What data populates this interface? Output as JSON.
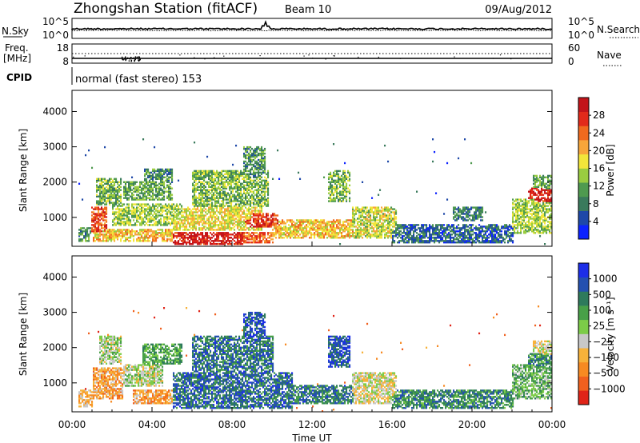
{
  "header": {
    "station": "Zhongshan Station (fitACF)",
    "beam": "Beam 10",
    "date": "09/Aug/2012"
  },
  "noise_panel": {
    "left_label": "N.Sky",
    "left_ticks": [
      "10^5",
      "10^0"
    ],
    "right_label": "N.Search",
    "right_ticks": [
      "10^5",
      "10^0"
    ]
  },
  "freq_panel": {
    "left_label_line1": "Freq.",
    "left_label_line2": "[MHz]",
    "left_ticks": [
      "18",
      "8"
    ],
    "right_label": "Nave",
    "right_ticks": [
      "60",
      "0"
    ]
  },
  "cpid": {
    "label": "CPID",
    "text": "normal (fast stereo) 153"
  },
  "chart_data": [
    {
      "type": "heatmap",
      "panel": "power",
      "ylabel": "Slant Range [km]",
      "ylim": [
        180,
        4600
      ],
      "yticks": [
        "1000",
        "2000",
        "3000",
        "4000"
      ],
      "xlim": [
        "00:00",
        "24:00"
      ],
      "colorbar": {
        "label": "Power [dB]",
        "ticks": [
          "4",
          "8",
          "12",
          "16",
          "20",
          "24",
          "28"
        ],
        "colors": [
          "#0c22ff",
          "#1e48a8",
          "#3a7a5c",
          "#4f9a4f",
          "#9acc40",
          "#f2e63a",
          "#f7a63a",
          "#f06a1e",
          "#e22a1a",
          "#c2141a"
        ]
      },
      "regions": [
        {
          "t0": 0.3,
          "t1": 0.9,
          "r0": 300,
          "r1": 700,
          "v": 0.3
        },
        {
          "t0": 0.9,
          "t1": 1.7,
          "r0": 550,
          "r1": 1300,
          "v": 0.8
        },
        {
          "t0": 1.2,
          "t1": 2.4,
          "r0": 1350,
          "r1": 2100,
          "v": 0.4
        },
        {
          "t0": 1.0,
          "t1": 5.0,
          "r0": 300,
          "r1": 650,
          "v": 0.6
        },
        {
          "t0": 2.0,
          "t1": 5.5,
          "r0": 750,
          "r1": 1350,
          "v": 0.45
        },
        {
          "t0": 2.5,
          "t1": 5.0,
          "r0": 1450,
          "r1": 2000,
          "v": 0.35
        },
        {
          "t0": 3.6,
          "t1": 5.0,
          "r0": 1950,
          "r1": 2350,
          "v": 0.3
        },
        {
          "t0": 5.0,
          "t1": 8.5,
          "r0": 220,
          "r1": 550,
          "v": 0.92
        },
        {
          "t0": 5.0,
          "t1": 9.5,
          "r0": 600,
          "r1": 1300,
          "v": 0.55
        },
        {
          "t0": 6.0,
          "t1": 9.8,
          "r0": 1300,
          "r1": 2300,
          "v": 0.4
        },
        {
          "t0": 8.5,
          "t1": 10.0,
          "r0": 250,
          "r1": 550,
          "v": 0.75
        },
        {
          "t0": 8.3,
          "t1": 10.3,
          "r0": 700,
          "r1": 1100,
          "v": 0.85
        },
        {
          "t0": 8.5,
          "t1": 9.6,
          "r0": 2100,
          "r1": 3000,
          "v": 0.3
        },
        {
          "t0": 10.0,
          "t1": 14.0,
          "r0": 400,
          "r1": 900,
          "v": 0.6
        },
        {
          "t0": 12.8,
          "t1": 13.9,
          "r0": 1400,
          "r1": 2300,
          "v": 0.4
        },
        {
          "t0": 14.0,
          "t1": 16.2,
          "r0": 400,
          "r1": 1300,
          "v": 0.5
        },
        {
          "t0": 16.0,
          "t1": 22.0,
          "r0": 250,
          "r1": 800,
          "v": 0.2
        },
        {
          "t0": 19.0,
          "t1": 20.5,
          "r0": 900,
          "r1": 1300,
          "v": 0.25
        },
        {
          "t0": 22.0,
          "t1": 24.0,
          "r0": 500,
          "r1": 1500,
          "v": 0.45
        },
        {
          "t0": 22.8,
          "t1": 24.0,
          "r0": 1400,
          "r1": 1800,
          "v": 0.9
        },
        {
          "t0": 23.0,
          "t1": 24.0,
          "r0": 1800,
          "r1": 2200,
          "v": 0.35
        }
      ]
    },
    {
      "type": "heatmap",
      "panel": "velocity",
      "ylabel": "Slant Range [km]",
      "ylim": [
        180,
        4600
      ],
      "yticks": [
        "1000",
        "2000",
        "3000",
        "4000"
      ],
      "xlim": [
        "00:00",
        "24:00"
      ],
      "xticks": [
        "00:00",
        "04:00",
        "08:00",
        "12:00",
        "16:00",
        "20:00",
        "00:00"
      ],
      "xlabel": "Time UT",
      "colorbar": {
        "label": "Velocity [m s⁻¹]",
        "ticks": [
          "1000",
          "500",
          "100",
          "25",
          "−25",
          "−100",
          "−500",
          "−1000"
        ],
        "colors": [
          "#1c2ee8",
          "#2450b0",
          "#2e7a5c",
          "#48a048",
          "#7ccc48",
          "#c8c8c8",
          "#f7b23a",
          "#f78a22",
          "#f0601e",
          "#e02418"
        ]
      },
      "regions": [
        {
          "t0": 0.3,
          "t1": 1.0,
          "r0": 300,
          "r1": 800,
          "v": 0.35
        },
        {
          "t0": 1.0,
          "t1": 2.5,
          "r0": 500,
          "r1": 1400,
          "v": 0.3
        },
        {
          "t0": 1.3,
          "t1": 2.4,
          "r0": 1500,
          "r1": 2300,
          "v": 0.5
        },
        {
          "t0": 2.5,
          "t1": 4.5,
          "r0": 900,
          "r1": 1500,
          "v": 0.5
        },
        {
          "t0": 3.0,
          "t1": 5.0,
          "r0": 400,
          "r1": 800,
          "v": 0.3
        },
        {
          "t0": 3.5,
          "t1": 5.5,
          "r0": 1500,
          "r1": 2100,
          "v": 0.65
        },
        {
          "t0": 5.0,
          "t1": 11.0,
          "r0": 250,
          "r1": 1300,
          "v": 0.8
        },
        {
          "t0": 6.0,
          "t1": 10.0,
          "r0": 1300,
          "r1": 2300,
          "v": 0.78
        },
        {
          "t0": 8.5,
          "t1": 9.6,
          "r0": 2100,
          "r1": 3000,
          "v": 0.85
        },
        {
          "t0": 10.0,
          "t1": 14.0,
          "r0": 400,
          "r1": 900,
          "v": 0.76
        },
        {
          "t0": 12.8,
          "t1": 13.9,
          "r0": 1400,
          "r1": 2300,
          "v": 0.86
        },
        {
          "t0": 14.0,
          "t1": 16.2,
          "r0": 400,
          "r1": 1300,
          "v": 0.45
        },
        {
          "t0": 16.0,
          "t1": 22.0,
          "r0": 250,
          "r1": 800,
          "v": 0.72
        },
        {
          "t0": 22.0,
          "t1": 24.0,
          "r0": 500,
          "r1": 1500,
          "v": 0.6
        },
        {
          "t0": 22.8,
          "t1": 24.0,
          "r0": 1400,
          "r1": 1800,
          "v": 0.72
        },
        {
          "t0": 23.0,
          "t1": 24.0,
          "r0": 1800,
          "r1": 2200,
          "v": 0.45
        }
      ]
    }
  ]
}
